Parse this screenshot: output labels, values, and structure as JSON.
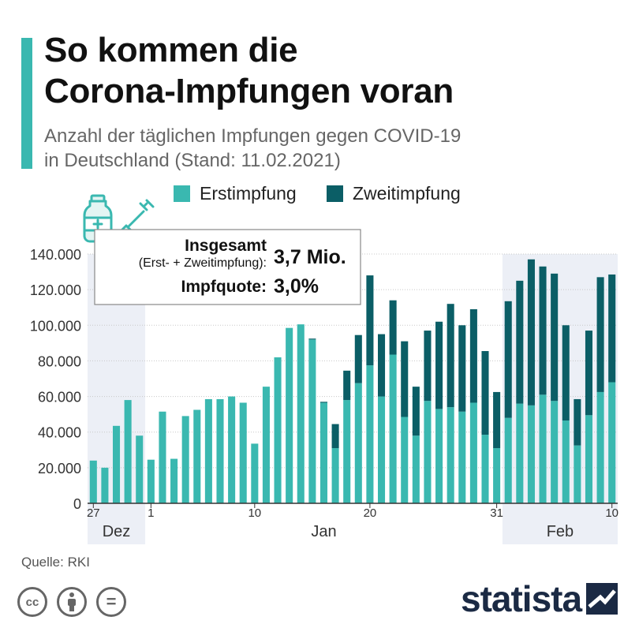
{
  "header": {
    "title_line1": "So kommen die",
    "title_line2": "Corona-Impfungen voran",
    "subtitle_line1": "Anzahl der täglichen Impfungen gegen COVID-19",
    "subtitle_line2": "in Deutschland (Stand: 11.02.2021)"
  },
  "legend": {
    "first": "Erstimpfung",
    "second": "Zweitimpfung"
  },
  "infobox": {
    "total_label": "Insgesamt",
    "total_sublabel": "(Erst- + Zweitimpfung):",
    "total_value": "3,7 Mio.",
    "quota_label": "Impfquote:",
    "quota_value": "3,0%"
  },
  "icons": {
    "vaccine": "vaccine-syringe-icon",
    "cc": "cc-icon",
    "by": "attribution-person-icon",
    "nd": "no-derivatives-icon",
    "brand": "statista-logo-icon"
  },
  "footer": {
    "source": "Quelle: RKI",
    "cc": "cc",
    "nd": "=",
    "brand": "statista"
  },
  "colors": {
    "erst": "#3ab8b0",
    "zweit": "#0b5e66",
    "shade": "#eceff6",
    "grid": "#c8c8c8",
    "accent": "#3ab8b0",
    "brand": "#1b2a44"
  },
  "chart_data": {
    "type": "bar",
    "stacked": true,
    "ylim": [
      0,
      140000
    ],
    "yticks": [
      0,
      20000,
      40000,
      60000,
      80000,
      100000,
      120000,
      140000
    ],
    "ytick_labels": [
      "0",
      "20.000",
      "40.000",
      "60.000",
      "80.000",
      "100.000",
      "120.000",
      "140.000"
    ],
    "x_day_labels": [
      {
        "index": 0,
        "label": "27"
      },
      {
        "index": 5,
        "label": "1"
      },
      {
        "index": 14,
        "label": "10"
      },
      {
        "index": 24,
        "label": "20"
      },
      {
        "index": 35,
        "label": "31"
      },
      {
        "index": 45,
        "label": "10"
      }
    ],
    "month_labels": [
      {
        "label": "Dez",
        "start_index": 0,
        "end_index": 4,
        "shaded": true
      },
      {
        "label": "Jan",
        "start_index": 5,
        "end_index": 35,
        "shaded": false
      },
      {
        "label": "Feb",
        "start_index": 36,
        "end_index": 45,
        "shaded": true
      }
    ],
    "dates": [
      "27.12",
      "28.12",
      "29.12",
      "30.12",
      "31.12",
      "01.01",
      "02.01",
      "03.01",
      "04.01",
      "05.01",
      "06.01",
      "07.01",
      "08.01",
      "09.01",
      "10.01",
      "11.01",
      "12.01",
      "13.01",
      "14.01",
      "15.01",
      "16.01",
      "17.01",
      "18.01",
      "19.01",
      "20.01",
      "21.01",
      "22.01",
      "23.01",
      "24.01",
      "25.01",
      "26.01",
      "27.01",
      "28.01",
      "29.01",
      "30.01",
      "31.01",
      "01.02",
      "02.02",
      "03.02",
      "04.02",
      "05.02",
      "06.02",
      "07.02",
      "08.02",
      "09.02",
      "10.02"
    ],
    "series": [
      {
        "name": "Erstimpfung",
        "values": [
          24000,
          20000,
          43500,
          58000,
          38000,
          24500,
          51500,
          25000,
          49000,
          52500,
          58500,
          58500,
          60000,
          56500,
          33500,
          65500,
          82000,
          98500,
          100500,
          92000,
          56500,
          31000,
          58000,
          67500,
          77500,
          60000,
          83500,
          48500,
          38000,
          57500,
          53000,
          54000,
          51500,
          56500,
          38500,
          31000,
          48000,
          56000,
          55000,
          61000,
          57500,
          46500,
          32500,
          49500,
          62500,
          68000
        ]
      },
      {
        "name": "Zweitimpfung",
        "values": [
          0,
          0,
          0,
          0,
          0,
          0,
          0,
          0,
          0,
          0,
          0,
          0,
          0,
          0,
          0,
          0,
          0,
          0,
          0,
          500,
          500,
          13500,
          16500,
          27000,
          50500,
          35000,
          30500,
          42500,
          27500,
          39500,
          49000,
          58000,
          48500,
          52500,
          47000,
          31500,
          65500,
          69000,
          82000,
          72000,
          71500,
          53500,
          26000,
          47500,
          64500,
          60500
        ]
      }
    ]
  }
}
